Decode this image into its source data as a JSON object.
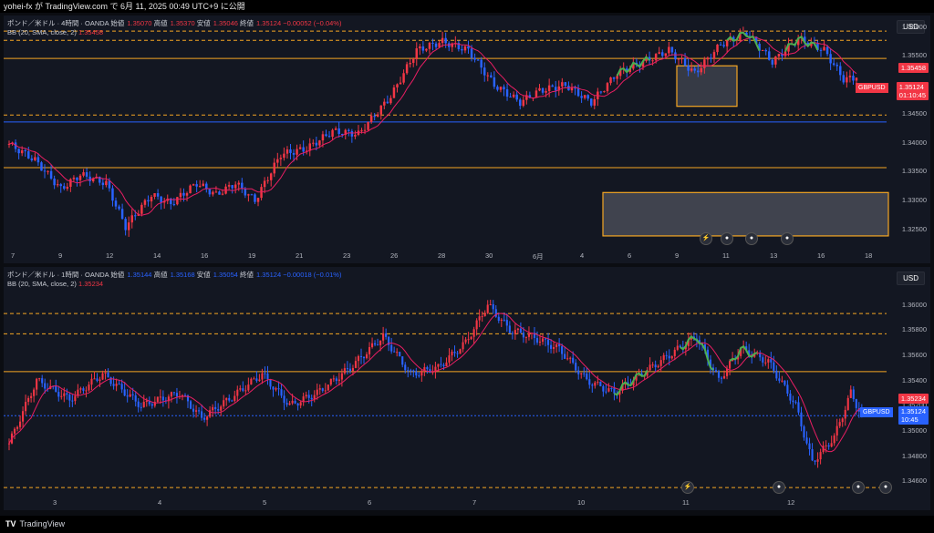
{
  "topbar": {
    "text": "yohei-fx が TradingView.com で 6月 11, 2025 00:49 UTC+9 に公開"
  },
  "panel1": {
    "legend": {
      "title": "ポンド／米ドル · 4時間 · OANDA",
      "o_label": "始値",
      "o": "1.35070",
      "h_label": "高値",
      "h": "1.35370",
      "l_label": "安値",
      "l": "1.35046",
      "c_label": "終値",
      "c": "1.35124",
      "chg": "−0.00052 (−0.04%)",
      "bb_label": "BB (20, SMA, close, 2)",
      "bb": "1.35458"
    },
    "currency": "USD",
    "y_ticks": [
      "1.36000",
      "1.35500",
      "1.35000",
      "1.34500",
      "1.34000",
      "1.33500",
      "1.33000",
      "1.32500"
    ],
    "y_range": [
      1.322,
      1.362
    ],
    "bb_price": "1.35458",
    "last_price": "1.35124",
    "countdown": "01:10:45",
    "symbol": "GBPUSD",
    "x_ticks": [
      "7",
      "9",
      "12",
      "14",
      "16",
      "19",
      "21",
      "23",
      "26",
      "28",
      "30",
      "6月",
      "4",
      "6",
      "9",
      "11",
      "13",
      "16",
      "18"
    ],
    "colors": {
      "up": "#f23645",
      "down": "#2962ff",
      "sma": "#e91e63"
    }
  },
  "panel2": {
    "legend": {
      "title": "ポンド／米ドル · 1時間 · OANDA",
      "o_label": "始値",
      "o": "1.35144",
      "h_label": "高値",
      "h": "1.35168",
      "l_label": "安値",
      "l": "1.35054",
      "c_label": "終値",
      "c": "1.35124",
      "chg": "−0.00018 (−0.01%)",
      "bb_label": "BB (20, SMA, close, 2)",
      "bb": "1.35234"
    },
    "currency": "USD",
    "y_ticks": [
      "1.36000",
      "1.35800",
      "1.35600",
      "1.35400",
      "1.35200",
      "1.35000",
      "1.34800",
      "1.34600"
    ],
    "y_range": [
      1.345,
      1.363
    ],
    "bb_price": "1.35234",
    "last_price": "1.35124",
    "countdown": "10:45",
    "symbol": "GBPUSD",
    "x_ticks": [
      "3",
      "4",
      "5",
      "6",
      "7",
      "10",
      "11",
      "12"
    ]
  },
  "footer": {
    "brand": "TradingView"
  }
}
